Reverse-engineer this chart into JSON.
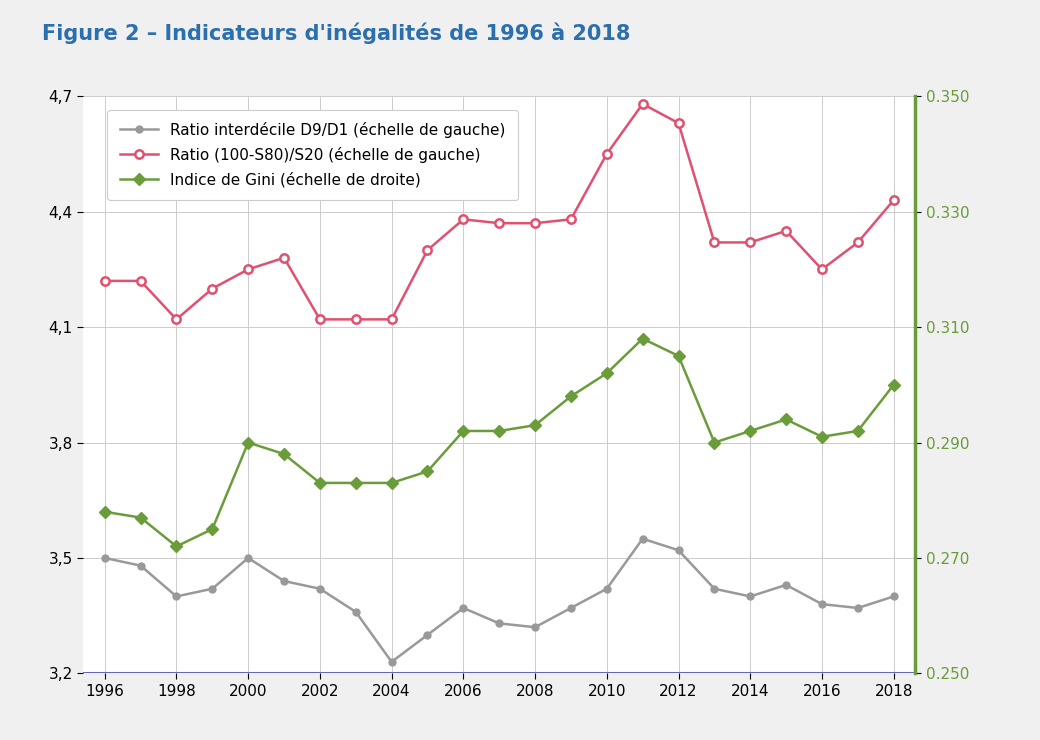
{
  "title": "Figure 2 – Indicateurs d'inégalités de 1996 à 2018",
  "title_color": "#2c6fad",
  "years": [
    1996,
    1997,
    1998,
    1999,
    2000,
    2001,
    2002,
    2003,
    2004,
    2005,
    2006,
    2007,
    2008,
    2009,
    2010,
    2011,
    2012,
    2013,
    2014,
    2015,
    2016,
    2017,
    2018
  ],
  "ratio_d9d1": [
    3.5,
    3.48,
    3.4,
    3.42,
    3.5,
    3.44,
    3.42,
    3.36,
    3.23,
    3.3,
    3.37,
    3.33,
    3.32,
    3.37,
    3.42,
    3.55,
    3.52,
    3.42,
    3.4,
    3.43,
    3.38,
    3.37,
    3.4
  ],
  "ratio_s80s20": [
    4.22,
    4.22,
    4.12,
    4.2,
    4.25,
    4.28,
    4.12,
    4.12,
    4.12,
    4.3,
    4.38,
    4.37,
    4.37,
    4.38,
    4.55,
    4.68,
    4.63,
    4.32,
    4.32,
    4.35,
    4.25,
    4.32,
    4.43
  ],
  "gini": [
    0.278,
    0.277,
    0.272,
    0.275,
    0.29,
    0.288,
    0.283,
    0.283,
    0.283,
    0.285,
    0.292,
    0.292,
    0.293,
    0.298,
    0.302,
    0.308,
    0.305,
    0.29,
    0.292,
    0.294,
    0.291,
    0.292,
    0.3
  ],
  "color_d9d1": "#999999",
  "color_s80s20": "#e05070",
  "color_gini": "#6a9c3a",
  "legend_d9d1": "Ratio interdécile D9/D1 (échelle de gauche)",
  "legend_s80s20": "Ratio (100-S80)/S20 (échelle de gauche)",
  "legend_gini": "Indice de Gini (échelle de droite)",
  "ylim_left": [
    3.2,
    4.7
  ],
  "ylim_right": [
    0.25,
    0.35
  ],
  "yticks_left": [
    3.2,
    3.5,
    3.8,
    4.1,
    4.4,
    4.7
  ],
  "yticks_right": [
    0.25,
    0.27,
    0.29,
    0.31,
    0.33,
    0.35
  ],
  "background_color": "#f0f0f0",
  "plot_bg_color": "#ffffff",
  "right_panel_color": "#f0f0f0",
  "grid_color": "#cccccc",
  "blue_line_color": "#6666bb",
  "tick_label_fontsize": 11,
  "legend_fontsize": 11
}
